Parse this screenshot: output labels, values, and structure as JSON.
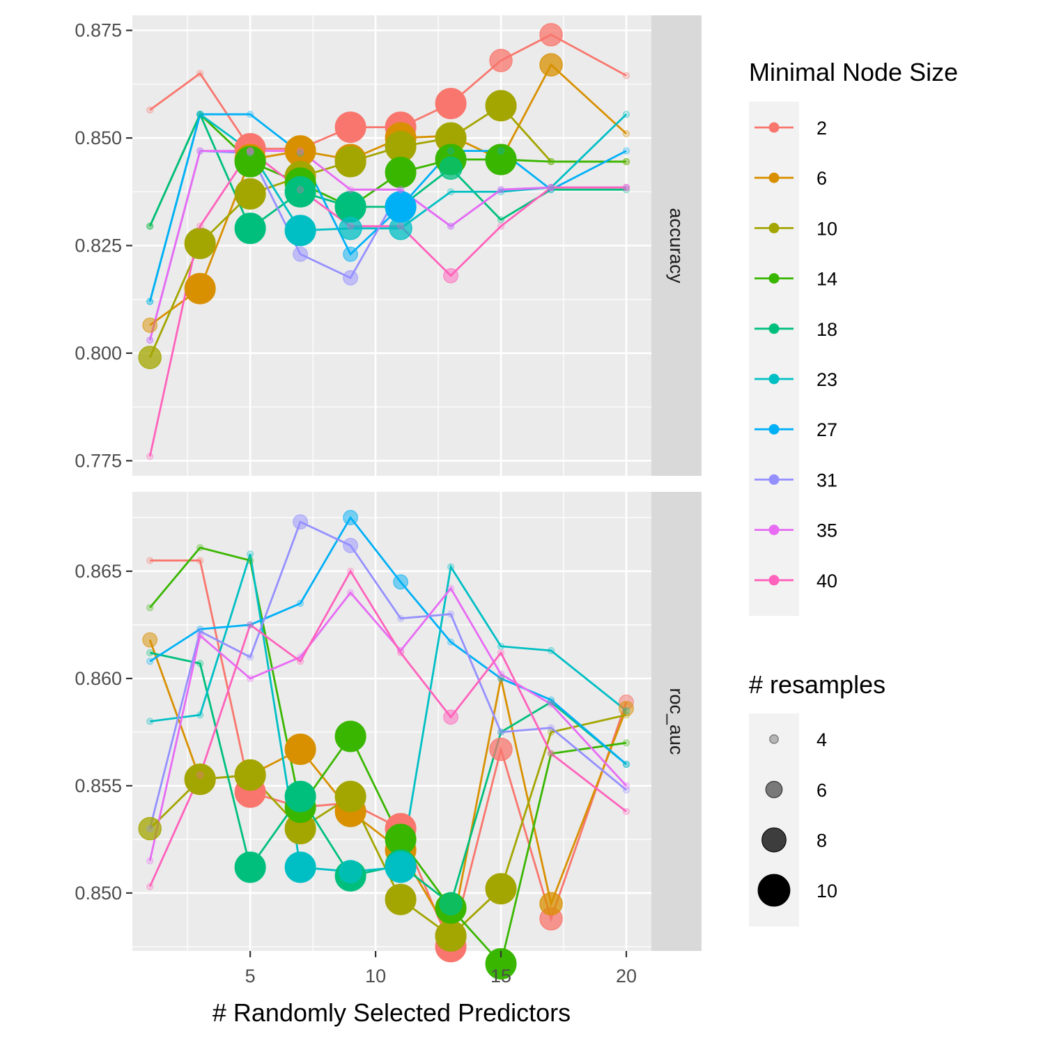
{
  "chart_data": {
    "type": "line",
    "xlabel": "# Randomly Selected Predictors",
    "x_ticks": [
      5,
      10,
      15,
      20
    ],
    "x_range": [
      0.3,
      21.0
    ],
    "x": [
      1,
      3,
      5,
      7,
      9,
      11,
      13,
      15,
      17,
      20
    ],
    "panels": [
      {
        "label": "accuracy",
        "ylim": [
          0.7715,
          0.8785
        ],
        "y_ticks": [
          0.775,
          0.8,
          0.825,
          0.85,
          0.875
        ],
        "y_tick_labels": [
          "0.775",
          "0.800",
          "0.825",
          "0.850",
          "0.875"
        ],
        "series": [
          {
            "name": "2",
            "values": [
              0.8565,
              0.865,
              0.8475,
              0.8475,
              0.8525,
              0.8525,
              0.858,
              0.868,
              0.874,
              0.8645
            ],
            "resamples": [
              4,
              4,
              10,
              8,
              10,
              10,
              10,
              8,
              8,
              4
            ]
          },
          {
            "name": "6",
            "values": [
              0.8065,
              0.815,
              0.845,
              0.847,
              0.845,
              0.85,
              0.8505,
              0.845,
              0.867,
              0.851
            ],
            "resamples": [
              6,
              10,
              10,
              10,
              10,
              10,
              8,
              4,
              8,
              4
            ]
          },
          {
            "name": "10",
            "values": [
              0.799,
              0.8255,
              0.837,
              0.841,
              0.8445,
              0.848,
              0.85,
              0.8575,
              0.8445,
              0.8445
            ],
            "resamples": [
              8,
              10,
              10,
              10,
              10,
              10,
              10,
              10,
              4,
              4
            ]
          },
          {
            "name": "14",
            "values": [
              0.8295,
              0.8555,
              0.8445,
              0.8395,
              0.834,
              0.842,
              0.845,
              0.845,
              0.8445,
              0.8445
            ],
            "resamples": [
              4,
              4,
              10,
              10,
              10,
              10,
              10,
              10,
              4,
              4
            ]
          },
          {
            "name": "18",
            "values": [
              0.8295,
              0.8555,
              0.829,
              0.8375,
              0.834,
              0.834,
              0.843,
              0.831,
              0.838,
              0.838
            ],
            "resamples": [
              4,
              4,
              10,
              10,
              10,
              10,
              8,
              4,
              4,
              4
            ]
          },
          {
            "name": "23",
            "values": [
              0.812,
              0.8555,
              0.847,
              0.8285,
              0.829,
              0.829,
              0.8375,
              0.8375,
              0.8385,
              0.8555
            ],
            "resamples": [
              4,
              4,
              4,
              10,
              8,
              8,
              4,
              4,
              4,
              4
            ]
          },
          {
            "name": "27",
            "values": [
              0.812,
              0.8555,
              0.8555,
              0.8465,
              0.823,
              0.834,
              0.847,
              0.847,
              0.838,
              0.847
            ],
            "resamples": [
              4,
              4,
              4,
              4,
              6,
              10,
              4,
              4,
              4,
              4
            ]
          },
          {
            "name": "31",
            "values": [
              0.803,
              0.847,
              0.8465,
              0.823,
              0.8175,
              0.838,
              0.8295,
              0.838,
              0.8385,
              0.8385
            ],
            "resamples": [
              4,
              4,
              4,
              6,
              6,
              4,
              4,
              4,
              4,
              4
            ]
          },
          {
            "name": "35",
            "values": [
              0.803,
              0.847,
              0.847,
              0.847,
              0.838,
              0.838,
              0.8295,
              0.838,
              0.8385,
              0.8385
            ],
            "resamples": [
              4,
              4,
              4,
              4,
              4,
              4,
              4,
              4,
              4,
              4
            ]
          },
          {
            "name": "40",
            "values": [
              0.776,
              0.8295,
              0.847,
              0.838,
              0.8295,
              0.8295,
              0.818,
              0.8295,
              0.8385,
              0.8385
            ],
            "resamples": [
              4,
              4,
              4,
              4,
              4,
              4,
              6,
              4,
              4,
              4
            ]
          }
        ]
      },
      {
        "label": "roc_auc",
        "ylim": [
          0.8473,
          0.8687
        ],
        "y_ticks": [
          0.85,
          0.855,
          0.86,
          0.865
        ],
        "y_tick_labels": [
          "0.850",
          "0.855",
          "0.860",
          "0.865"
        ],
        "series": [
          {
            "name": "2",
            "values": [
              0.8655,
              0.8655,
              0.8547,
              0.854,
              0.8542,
              0.853,
              0.8475,
              0.8567,
              0.8488,
              0.8589
            ],
            "resamples": [
              4,
              4,
              10,
              6,
              8,
              10,
              10,
              8,
              8,
              6
            ]
          },
          {
            "name": "6",
            "values": [
              0.8618,
              0.8553,
              0.8555,
              0.8567,
              0.8538,
              0.852,
              0.848,
              0.86,
              0.8495,
              0.8586
            ],
            "resamples": [
              6,
              10,
              10,
              10,
              10,
              10,
              10,
              4,
              8,
              6
            ]
          },
          {
            "name": "10",
            "values": [
              0.853,
              0.8553,
              0.8555,
              0.853,
              0.8545,
              0.8497,
              0.848,
              0.8502,
              0.8575,
              0.8583
            ],
            "resamples": [
              8,
              10,
              10,
              10,
              10,
              10,
              10,
              10,
              4,
              4
            ]
          },
          {
            "name": "14",
            "values": [
              0.8633,
              0.8661,
              0.8655,
              0.854,
              0.8573,
              0.8525,
              0.8493,
              0.8467,
              0.8565,
              0.857
            ],
            "resamples": [
              4,
              4,
              4,
              10,
              10,
              10,
              10,
              10,
              4,
              4
            ]
          },
          {
            "name": "18",
            "values": [
              0.8612,
              0.8607,
              0.8512,
              0.8545,
              0.8508,
              0.8513,
              0.8495,
              0.8575,
              0.8589,
              0.856
            ],
            "resamples": [
              4,
              4,
              10,
              10,
              10,
              10,
              8,
              4,
              4,
              4
            ]
          },
          {
            "name": "23",
            "values": [
              0.858,
              0.8583,
              0.8658,
              0.8512,
              0.851,
              0.8512,
              0.8652,
              0.8615,
              0.8613,
              0.8585
            ],
            "resamples": [
              4,
              4,
              4,
              10,
              8,
              10,
              4,
              4,
              4,
              4
            ]
          },
          {
            "name": "27",
            "values": [
              0.8608,
              0.8623,
              0.8625,
              0.8635,
              0.8675,
              0.8645,
              0.8617,
              0.86,
              0.859,
              0.856
            ],
            "resamples": [
              4,
              4,
              4,
              4,
              6,
              6,
              4,
              4,
              4,
              4
            ]
          },
          {
            "name": "31",
            "values": [
              0.853,
              0.8622,
              0.861,
              0.8673,
              0.8662,
              0.8628,
              0.863,
              0.8575,
              0.8577,
              0.8548
            ],
            "resamples": [
              4,
              4,
              4,
              6,
              6,
              4,
              4,
              4,
              4,
              4
            ]
          },
          {
            "name": "35",
            "values": [
              0.8515,
              0.862,
              0.86,
              0.861,
              0.864,
              0.8613,
              0.8642,
              0.8602,
              0.8588,
              0.855
            ],
            "resamples": [
              4,
              4,
              4,
              4,
              4,
              4,
              4,
              4,
              4,
              4
            ]
          },
          {
            "name": "40",
            "values": [
              0.8503,
              0.8555,
              0.8625,
              0.8608,
              0.865,
              0.8612,
              0.8582,
              0.8612,
              0.8565,
              0.8538
            ],
            "resamples": [
              4,
              4,
              4,
              4,
              4,
              4,
              6,
              4,
              4,
              4
            ]
          }
        ]
      }
    ],
    "legend_color": {
      "title": "Minimal Node Size",
      "entries": [
        {
          "label": " 2",
          "color": "#F8766D"
        },
        {
          "label": " 6",
          "color": "#D89000"
        },
        {
          "label": "10",
          "color": "#A3A500"
        },
        {
          "label": "14",
          "color": "#39B600"
        },
        {
          "label": "18",
          "color": "#00BF7D"
        },
        {
          "label": "23",
          "color": "#00BFC4"
        },
        {
          "label": "27",
          "color": "#00B0F6"
        },
        {
          "label": "31",
          "color": "#9590FF"
        },
        {
          "label": "35",
          "color": "#E76BF3"
        },
        {
          "label": "40",
          "color": "#FF62BC"
        }
      ]
    },
    "legend_size": {
      "title": "# resamples",
      "entries": [
        {
          "label": "4",
          "value": 4
        },
        {
          "label": "6",
          "value": 6
        },
        {
          "label": "8",
          "value": 8
        },
        {
          "label": "10",
          "value": 10
        }
      ]
    },
    "legend_position": "right",
    "grid": true
  }
}
